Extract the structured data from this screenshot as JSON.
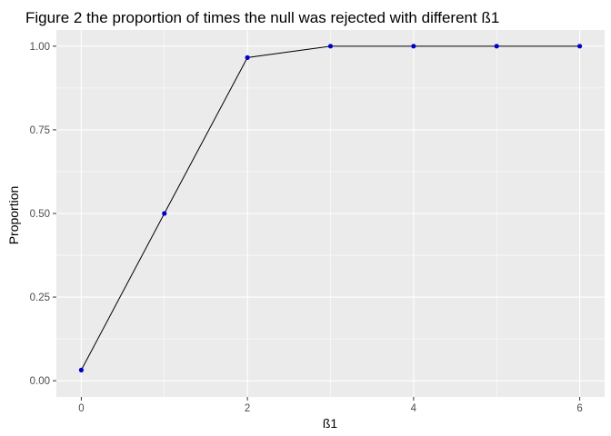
{
  "chart_data": {
    "type": "line",
    "title": "Figure 2 the proportion of times the null was rejected with different ß1",
    "xlabel": "ß1",
    "ylabel": "Proportion",
    "x": [
      0,
      1,
      2,
      3,
      4,
      5,
      6
    ],
    "series": [
      {
        "name": "Proportion",
        "values": [
          0.032,
          0.5,
          0.966,
          1.0,
          1.0,
          1.0,
          1.0
        ]
      }
    ],
    "xlim": [
      -0.3,
      6.3
    ],
    "ylim": [
      -0.0484,
      1.0484
    ],
    "x_ticks": [
      0,
      2,
      4,
      6
    ],
    "x_tick_labels": [
      "0",
      "2",
      "4",
      "6"
    ],
    "y_ticks": [
      0,
      0.25,
      0.5,
      0.75,
      1.0
    ],
    "y_tick_labels": [
      "0.00",
      "0.25",
      "0.50",
      "0.75",
      "1.00"
    ],
    "grid": true,
    "colors": {
      "panel_background": "#ebebeb",
      "grid": "#ffffff",
      "line": "#000000",
      "point": "#0000cd",
      "tick_text": "#4d4d4d"
    }
  }
}
